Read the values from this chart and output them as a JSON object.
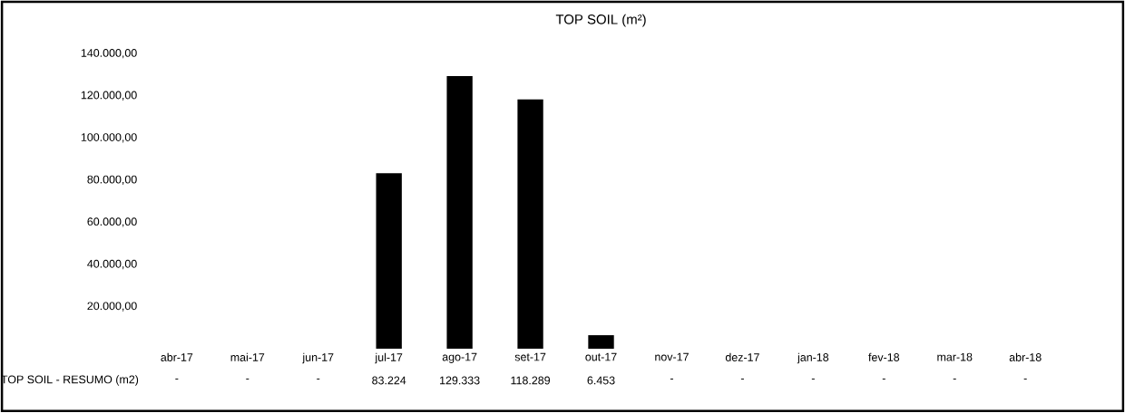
{
  "chart_data": {
    "type": "bar",
    "title": "TOP SOIL (m²)",
    "categories": [
      "abr-17",
      "mai-17",
      "jun-17",
      "jul-17",
      "ago-17",
      "set-17",
      "out-17",
      "nov-17",
      "dez-17",
      "jan-18",
      "fev-18",
      "mar-18",
      "abr-18"
    ],
    "series": [
      {
        "name": "TOP SOIL - RESUMO (m2)",
        "color": "#000000",
        "values": [
          0,
          0,
          0,
          83224,
          129333,
          118289,
          6453,
          0,
          0,
          0,
          0,
          0,
          0
        ],
        "value_labels": [
          "-",
          "-",
          "-",
          "83.224",
          "129.333",
          "118.289",
          "6.453",
          "-",
          "-",
          "-",
          "-",
          "-",
          "-"
        ]
      }
    ],
    "ylim": [
      0,
      140000
    ],
    "yticks": [
      {
        "value": 20000,
        "label": "20.000,00"
      },
      {
        "value": 40000,
        "label": "40.000,00"
      },
      {
        "value": 60000,
        "label": "60.000,00"
      },
      {
        "value": 80000,
        "label": "80.000,00"
      },
      {
        "value": 100000,
        "label": "100.000,00"
      },
      {
        "value": 120000,
        "label": "120.000,00"
      },
      {
        "value": 140000,
        "label": "140.000,00"
      }
    ]
  }
}
